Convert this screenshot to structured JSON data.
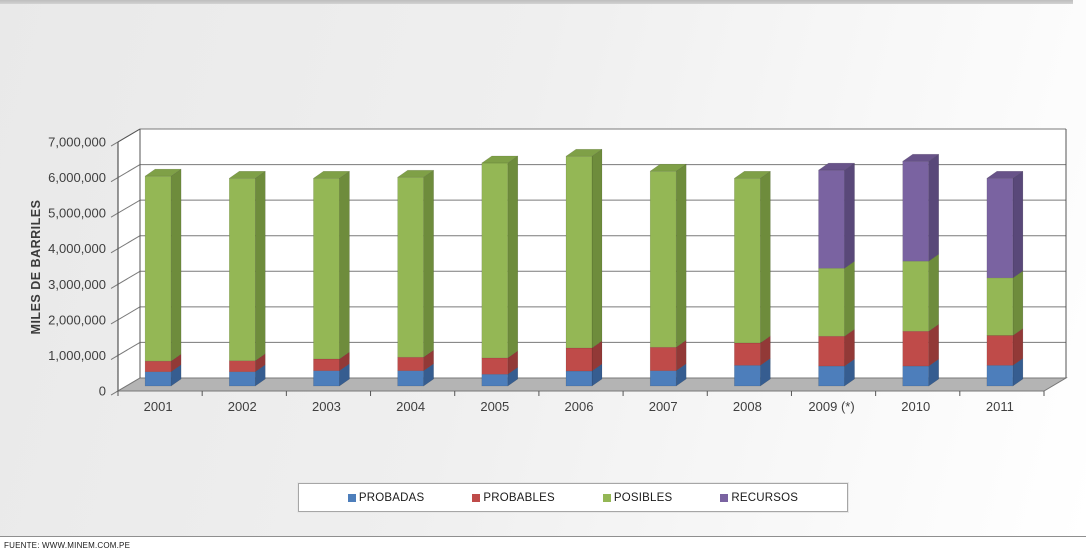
{
  "footer": {
    "source": "FUENTE: WWW.MINEM.COM.PE"
  },
  "chart_data": {
    "type": "bar",
    "stacked": true,
    "effect_3d": true,
    "title": "",
    "xlabel": "",
    "ylabel": "MILES DE BARRILES",
    "ylim": [
      0,
      7000000
    ],
    "ytick_step": 1000000,
    "ytick_labels": [
      "0",
      "1,000,000",
      "2,000,000",
      "3,000,000",
      "4,000,000",
      "5,000,000",
      "6,000,000",
      "7,000,000"
    ],
    "grid": true,
    "legend_position": "bottom",
    "plot_colors": {
      "plot_bg": "#ffffff",
      "floor": "#b4b4b4",
      "floor_edge": "#787878",
      "gridline": "#7a7a7a",
      "axis_line": "#555555",
      "tick_text": "#3f3f3f"
    },
    "categories": [
      "2001",
      "2002",
      "2003",
      "2004",
      "2005",
      "2006",
      "2007",
      "2008",
      "2009 (*)",
      "2010",
      "2011"
    ],
    "series": [
      {
        "name": "PROBADAS",
        "color": "#4d7ebb",
        "color_side": "#365d90",
        "color_top": "#426a9e",
        "values": [
          400000,
          400000,
          430000,
          430000,
          330000,
          420000,
          430000,
          580000,
          560000,
          560000,
          580000
        ]
      },
      {
        "name": "PROBABLES",
        "color": "#bf4b49",
        "color_side": "#923937",
        "color_top": "#a63f3d",
        "values": [
          300000,
          310000,
          330000,
          380000,
          460000,
          650000,
          660000,
          630000,
          840000,
          980000,
          840000
        ]
      },
      {
        "name": "POSIBLES",
        "color": "#94b755",
        "color_side": "#6e8c3c",
        "color_top": "#7fa047",
        "values": [
          5200000,
          5130000,
          5080000,
          5060000,
          5480000,
          5390000,
          4950000,
          4630000,
          1910000,
          1970000,
          1620000
        ]
      },
      {
        "name": "RECURSOS",
        "color": "#7a63a1",
        "color_side": "#594879",
        "color_top": "#685389",
        "values": [
          0,
          0,
          0,
          0,
          0,
          0,
          0,
          0,
          2760000,
          2810000,
          2800000
        ]
      }
    ]
  }
}
